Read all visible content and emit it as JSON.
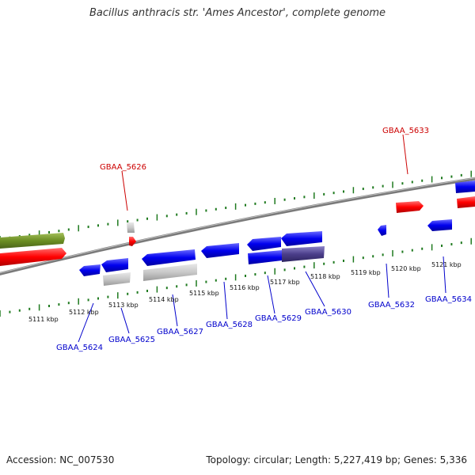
{
  "title": "Bacillus anthracis str. 'Ames Ancestor', complete genome",
  "footer": {
    "accession": "Accession: NC_007530",
    "summary": "Topology: circular; Length: 5,227,419 bp; Genes: 5,336"
  },
  "colors": {
    "backbone": "#7a7a7a",
    "ticks": "#1f7a1f",
    "forward_gene": "#ff0000",
    "reverse_gene": "#0000ee",
    "label_forward": "#cc0000",
    "label_reverse": "#0000cc",
    "rna_feature": "#c8c8c8",
    "olive_feature": "#6b8e23",
    "purple_feature": "#4b3e8a"
  },
  "kbp_labels": [
    "5111 kbp",
    "5112 kbp",
    "5113 kbp",
    "5114 kbp",
    "5115 kbp",
    "5116 kbp",
    "5117 kbp",
    "5118 kbp",
    "5119 kbp",
    "5120 kbp",
    "5121 kbp"
  ],
  "gene_labels": {
    "forward": [
      "GBAA_5626",
      "GBAA_5633"
    ],
    "reverse": [
      "GBAA_5624",
      "GBAA_5625",
      "GBAA_5627",
      "GBAA_5628",
      "GBAA_5629",
      "GBAA_5630",
      "GBAA_5632",
      "GBAA_5634"
    ]
  }
}
